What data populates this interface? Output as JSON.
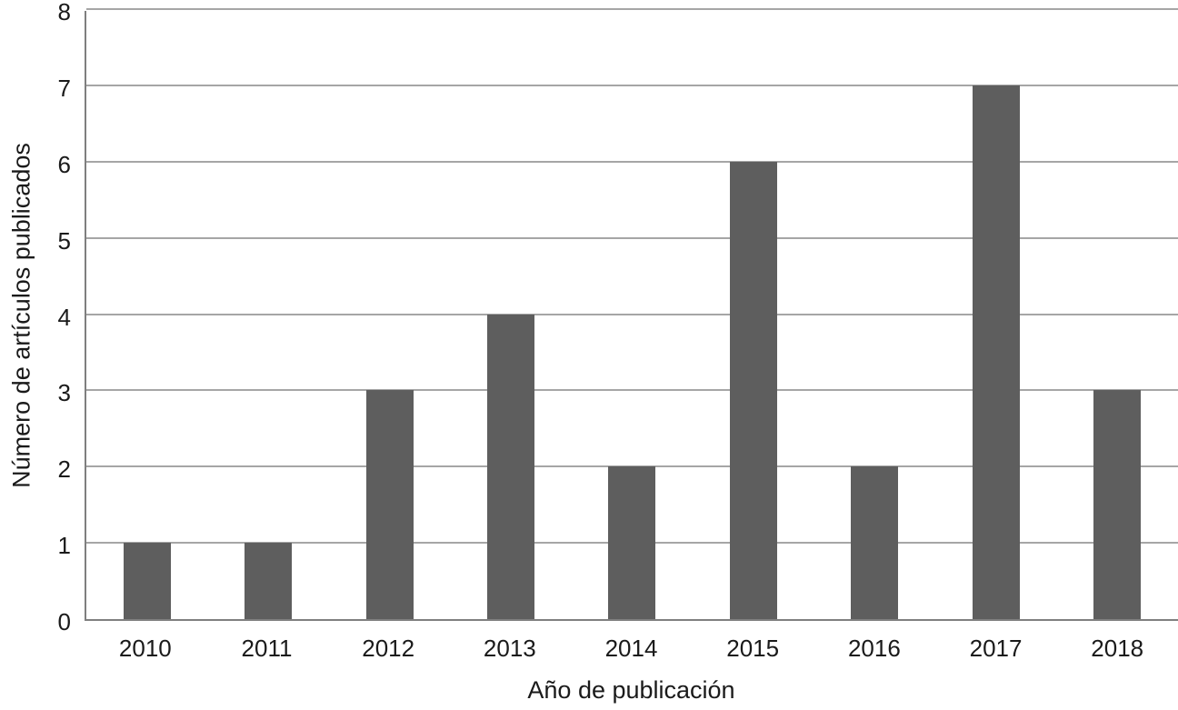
{
  "chart_data": {
    "type": "bar",
    "categories": [
      "2010",
      "2011",
      "2012",
      "2013",
      "2014",
      "2015",
      "2016",
      "2017",
      "2018"
    ],
    "values": [
      1,
      1,
      3,
      4,
      2,
      6,
      2,
      7,
      3
    ],
    "title": "",
    "xlabel": "Año de publicación",
    "ylabel": "Número de artículos publicados",
    "ylim": [
      0,
      8
    ],
    "yticks": [
      0,
      1,
      2,
      3,
      4,
      5,
      6,
      7,
      8
    ],
    "grid": "horizontal-on",
    "legend": "none",
    "colors": {
      "bar_fill": "#5e5e5e",
      "gridline": "#a6a6a6",
      "axis_line": "#7f7f7f",
      "text": "#1a1a1a",
      "background": "#ffffff"
    }
  }
}
